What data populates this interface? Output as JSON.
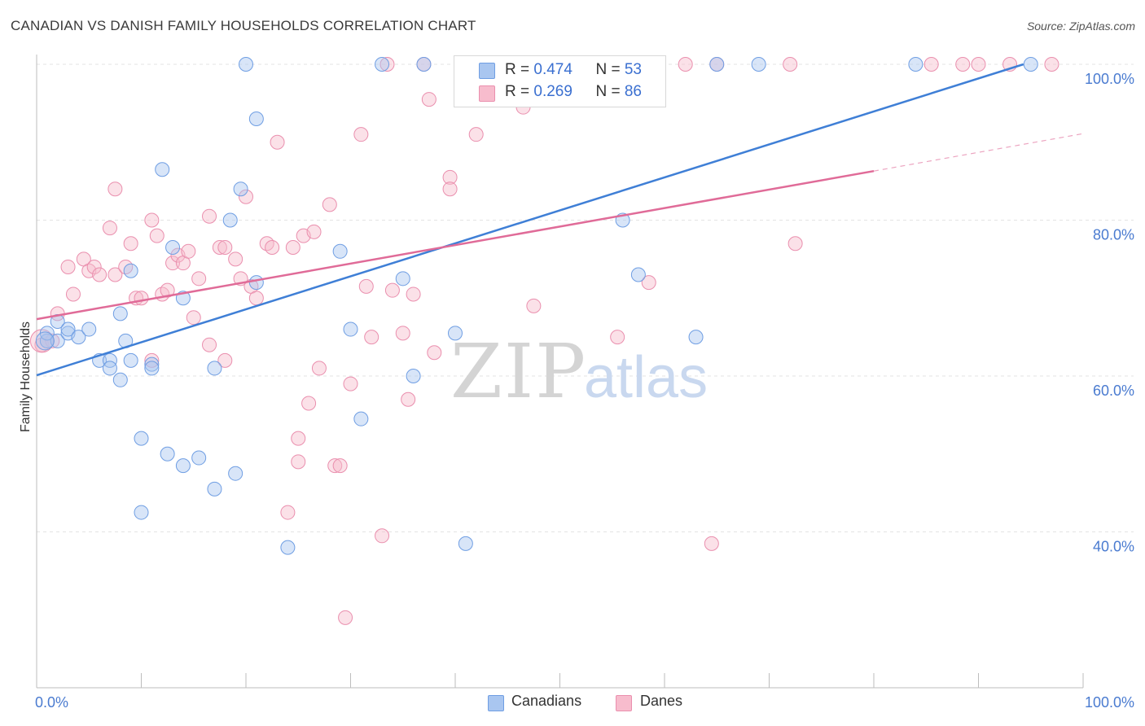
{
  "header": {
    "title": "CANADIAN VS DANISH FAMILY HOUSEHOLDS CORRELATION CHART",
    "source": "Source: ZipAtlas.com"
  },
  "watermark": {
    "zip": "ZIP",
    "atlas": "atlas"
  },
  "legend_top": {
    "rows": [
      {
        "r_label": "R = ",
        "r_value": "0.474",
        "n_label": "N = ",
        "n_value": "53",
        "color": "#a9c6f0",
        "stroke": "#6f9ee3"
      },
      {
        "r_label": "R = ",
        "r_value": "0.269",
        "n_label": "N = ",
        "n_value": "86",
        "color": "#f7bccd",
        "stroke": "#ea8fae"
      }
    ]
  },
  "legend_bottom": [
    {
      "label": "Canadians",
      "color": "#a9c6f0",
      "stroke": "#6f9ee3"
    },
    {
      "label": "Danes",
      "color": "#f7bccd",
      "stroke": "#ea8fae"
    }
  ],
  "chart_data": {
    "type": "scatter",
    "title": "CANADIAN VS DANISH FAMILY HOUSEHOLDS CORRELATION CHART",
    "xlabel": "",
    "ylabel": "Family Households",
    "xlim": [
      0,
      100
    ],
    "ylim": [
      22,
      102
    ],
    "x_ticks": [
      {
        "value": 0,
        "label": "0.0%"
      },
      {
        "value": 100,
        "label": "100.0%"
      }
    ],
    "y_ticks": [
      {
        "value": 40,
        "label": "40.0%"
      },
      {
        "value": 60,
        "label": "60.0%"
      },
      {
        "value": 80,
        "label": "80.0%"
      },
      {
        "value": 100,
        "label": "100.0%"
      }
    ],
    "grid": true,
    "legend_position": "top-center",
    "colors": {
      "Canadians": "#3f7fd6",
      "Danes": "#e06b98"
    },
    "series": [
      {
        "name": "Canadians",
        "r": "0.474",
        "n": "53",
        "trend": {
          "x0": 0,
          "y0": 60.1,
          "x1": 94.3,
          "y1": 100.0
        },
        "points": [
          [
            1,
            64.5
          ],
          [
            1,
            65.5
          ],
          [
            2,
            64.5
          ],
          [
            2,
            67
          ],
          [
            3,
            65.5
          ],
          [
            3,
            66
          ],
          [
            4,
            65
          ],
          [
            5,
            66
          ],
          [
            6,
            62
          ],
          [
            7,
            62
          ],
          [
            7,
            61
          ],
          [
            8,
            59.5
          ],
          [
            8,
            68
          ],
          [
            8.5,
            64.5
          ],
          [
            9,
            73.5
          ],
          [
            9,
            62
          ],
          [
            10,
            52
          ],
          [
            10,
            42.5
          ],
          [
            11,
            61.5
          ],
          [
            11,
            61
          ],
          [
            12,
            86.5
          ],
          [
            12.5,
            50
          ],
          [
            13,
            76.5
          ],
          [
            14,
            48.5
          ],
          [
            14,
            70
          ],
          [
            15.5,
            49.5
          ],
          [
            17,
            61
          ],
          [
            17,
            45.5
          ],
          [
            18.5,
            80
          ],
          [
            19,
            47.5
          ],
          [
            19.5,
            84
          ],
          [
            20,
            100
          ],
          [
            21,
            72
          ],
          [
            21,
            93
          ],
          [
            24,
            38
          ],
          [
            29,
            76
          ],
          [
            30,
            66
          ],
          [
            31,
            54.5
          ],
          [
            33,
            100
          ],
          [
            35,
            72.5
          ],
          [
            36,
            60
          ],
          [
            37,
            100
          ],
          [
            41,
            100
          ],
          [
            41,
            38.5
          ],
          [
            40,
            65.5
          ],
          [
            56,
            80
          ],
          [
            57.5,
            73
          ],
          [
            58,
            100
          ],
          [
            63,
            65
          ],
          [
            65,
            100
          ],
          [
            69,
            100
          ],
          [
            84,
            100
          ],
          [
            95,
            100
          ]
        ]
      },
      {
        "name": "Danes",
        "r": "0.269",
        "n": "86",
        "trend": {
          "x0": 0,
          "y0": 67.3,
          "x1": 80.0,
          "y1": 86.3,
          "x2": 100.0,
          "y2": 91.1
        },
        "points": [
          [
            0.5,
            64
          ],
          [
            1,
            64.5
          ],
          [
            1.5,
            64.5
          ],
          [
            2,
            68
          ],
          [
            3,
            74
          ],
          [
            3.5,
            70.5
          ],
          [
            4.5,
            75
          ],
          [
            5,
            73.5
          ],
          [
            5.5,
            74
          ],
          [
            6,
            73
          ],
          [
            7,
            79
          ],
          [
            7.5,
            73
          ],
          [
            7.5,
            84
          ],
          [
            8.5,
            74
          ],
          [
            9,
            77
          ],
          [
            9.5,
            70
          ],
          [
            10,
            70
          ],
          [
            11,
            62
          ],
          [
            11,
            80
          ],
          [
            11.5,
            78
          ],
          [
            12,
            70.5
          ],
          [
            12.5,
            71
          ],
          [
            13,
            74.5
          ],
          [
            13.5,
            75.5
          ],
          [
            14,
            74.5
          ],
          [
            14.5,
            76
          ],
          [
            15,
            67.5
          ],
          [
            15.5,
            72.5
          ],
          [
            16.5,
            80.5
          ],
          [
            16.5,
            64
          ],
          [
            17.5,
            76.5
          ],
          [
            18,
            76.5
          ],
          [
            18,
            62
          ],
          [
            19,
            75
          ],
          [
            19.5,
            72.5
          ],
          [
            20,
            83
          ],
          [
            20.5,
            71.5
          ],
          [
            21,
            70
          ],
          [
            22,
            77
          ],
          [
            22.5,
            76.5
          ],
          [
            23,
            90
          ],
          [
            24,
            42.5
          ],
          [
            24.5,
            76.5
          ],
          [
            25,
            49
          ],
          [
            25,
            52
          ],
          [
            25.5,
            78
          ],
          [
            26,
            56.5
          ],
          [
            26.5,
            78.5
          ],
          [
            27,
            61
          ],
          [
            28,
            82
          ],
          [
            28.5,
            48.5
          ],
          [
            29,
            48.5
          ],
          [
            29.5,
            29
          ],
          [
            30,
            59
          ],
          [
            31,
            91
          ],
          [
            31.5,
            71.5
          ],
          [
            32,
            65
          ],
          [
            33,
            39.5
          ],
          [
            33.5,
            100
          ],
          [
            34,
            71
          ],
          [
            35,
            65.5
          ],
          [
            35.5,
            57
          ],
          [
            36,
            70.5
          ],
          [
            37,
            100
          ],
          [
            37.5,
            95.5
          ],
          [
            38,
            63
          ],
          [
            39.5,
            85.5
          ],
          [
            39.5,
            84
          ],
          [
            41,
            100
          ],
          [
            42,
            91
          ],
          [
            46,
            100
          ],
          [
            46.5,
            94.5
          ],
          [
            47.5,
            69
          ],
          [
            55,
            100
          ],
          [
            55.5,
            65
          ],
          [
            58.5,
            72
          ],
          [
            62,
            100
          ],
          [
            65,
            100
          ],
          [
            72,
            100
          ],
          [
            64.5,
            38.5
          ],
          [
            72.5,
            77
          ],
          [
            85.5,
            100
          ],
          [
            88.5,
            100
          ],
          [
            90,
            100
          ],
          [
            93,
            100
          ],
          [
            97,
            100
          ]
        ]
      }
    ]
  }
}
